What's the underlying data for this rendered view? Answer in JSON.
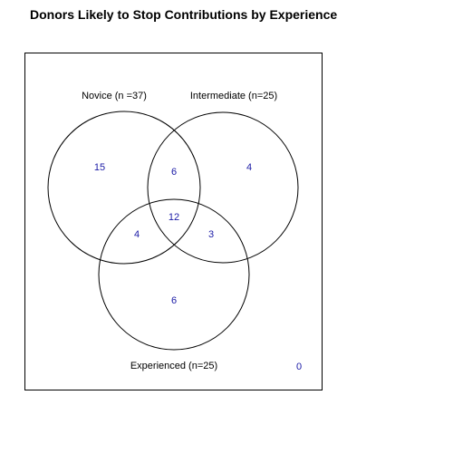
{
  "title": "Donors Likely to Stop Contributions by Experience",
  "sets": [
    {
      "label": "Novice (n =37)"
    },
    {
      "label": "Intermediate (n=25)"
    },
    {
      "label": "Experienced (n=25)"
    }
  ],
  "regions": {
    "novice_only": "15",
    "novice_intermediate": "6",
    "intermediate_only": "4",
    "all_three": "12",
    "novice_experienced": "4",
    "intermediate_experienced": "3",
    "experienced_only": "6",
    "none": "0"
  },
  "colors": {
    "count_text": "#1a1aa6",
    "circle_stroke": "#000000"
  }
}
